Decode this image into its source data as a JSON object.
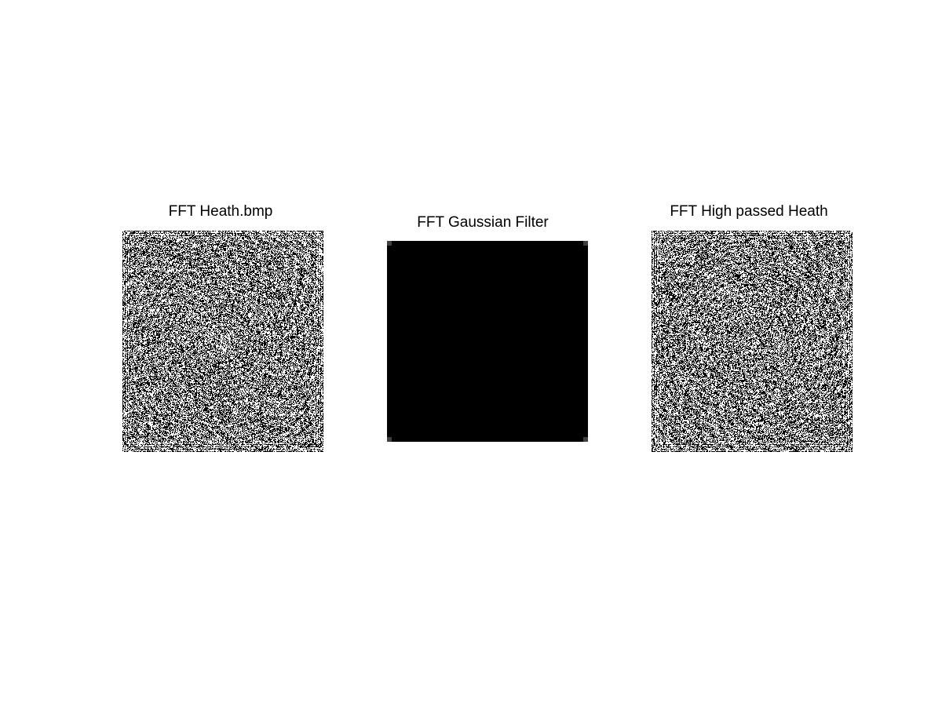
{
  "figure": {
    "panels": [
      {
        "title": "FFT Heath.bmp",
        "image": "fft-magnitude-noise"
      },
      {
        "title": "FFT Gaussian Filter",
        "image": "fft-gaussian-filter"
      },
      {
        "title": "FFT High passed Heath",
        "image": "fft-magnitude-noise"
      }
    ]
  },
  "colors": {
    "background": "#ffffff",
    "foreground": "#000000",
    "filter_corner": "#404040"
  }
}
